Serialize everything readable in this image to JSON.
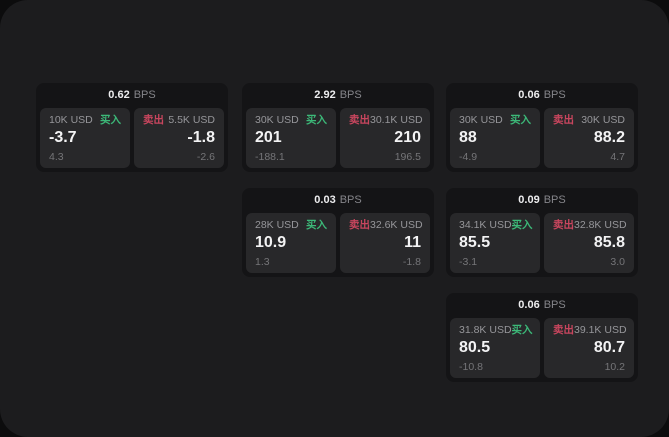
{
  "labels": {
    "bps_unit": "BPS",
    "buy": "买入",
    "sell": "卖出"
  },
  "colors": {
    "buy_green": "#3cb878",
    "sell_red": "#c9465e",
    "window_bg": "#1c1c1e",
    "card_bg": "#141416",
    "panel_bg": "#28282a"
  },
  "cards": [
    {
      "spread": "0.62",
      "buy": {
        "size": "10K USD",
        "price": "-3.7",
        "secondary": "4.3"
      },
      "sell": {
        "size": "5.5K USD",
        "price": "-1.8",
        "secondary": "-2.6"
      }
    },
    {
      "spread": "2.92",
      "buy": {
        "size": "30K USD",
        "price": "201",
        "secondary": "-188.1"
      },
      "sell": {
        "size": "30.1K USD",
        "price": "210",
        "secondary": "196.5"
      }
    },
    {
      "spread": "0.06",
      "buy": {
        "size": "30K USD",
        "price": "88",
        "secondary": "-4.9"
      },
      "sell": {
        "size": "30K USD",
        "price": "88.2",
        "secondary": "4.7"
      }
    },
    {
      "spread": "0.03",
      "buy": {
        "size": "28K USD",
        "price": "10.9",
        "secondary": "1.3"
      },
      "sell": {
        "size": "32.6K USD",
        "price": "11",
        "secondary": "-1.8"
      }
    },
    {
      "spread": "0.09",
      "buy": {
        "size": "34.1K USD",
        "price": "85.5",
        "secondary": "-3.1"
      },
      "sell": {
        "size": "32.8K USD",
        "price": "85.8",
        "secondary": "3.0"
      }
    },
    {
      "spread": "0.06",
      "buy": {
        "size": "31.8K USD",
        "price": "80.5",
        "secondary": "-10.8"
      },
      "sell": {
        "size": "39.1K USD",
        "price": "80.7",
        "secondary": "10.2"
      }
    }
  ]
}
